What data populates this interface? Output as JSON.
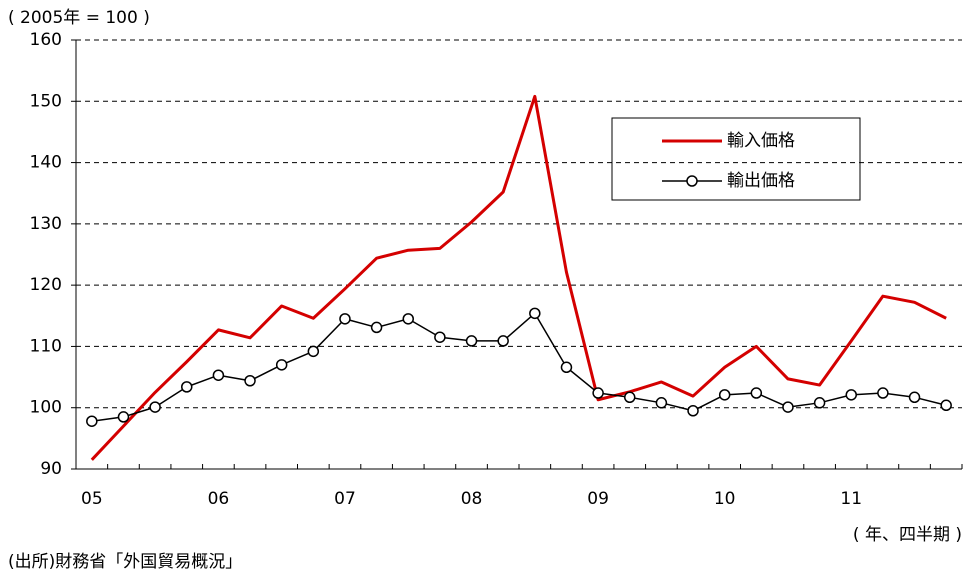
{
  "chart_data": {
    "type": "line",
    "y_label": "( 2005年 = 100 )",
    "x_label": "( 年、四半期 )",
    "source": "(出所)財務省「外国貿易概況」",
    "categories": [
      "05",
      null,
      null,
      null,
      "06",
      null,
      null,
      null,
      "07",
      null,
      null,
      null,
      "08",
      null,
      null,
      null,
      "09",
      null,
      null,
      null,
      "10",
      null,
      null,
      null,
      "11",
      null,
      null,
      null
    ],
    "series": [
      {
        "name": "輸入価格",
        "color": "#d40000",
        "marker": "none",
        "values": [
          91.5,
          97,
          102.5,
          107.5,
          112.7,
          111.4,
          116.6,
          114.6,
          119.4,
          124.4,
          125.7,
          126,
          130.3,
          135.2,
          150.8,
          122.1,
          101.3,
          102.6,
          104.2,
          101.9,
          106.6,
          110,
          104.7,
          103.7,
          110.9,
          118.2,
          117.2,
          114.6
        ]
      },
      {
        "name": "輸出価格",
        "color": "#000000",
        "marker": "circle",
        "values": [
          97.8,
          98.5,
          100.1,
          103.4,
          105.3,
          104.4,
          107,
          109.2,
          114.5,
          113.1,
          114.5,
          111.5,
          110.9,
          110.9,
          115.4,
          106.6,
          102.4,
          101.7,
          100.8,
          99.5,
          102.1,
          102.4,
          100.1,
          100.8,
          102.1,
          102.4,
          101.7,
          100.4
        ]
      }
    ],
    "ylim": [
      90,
      160
    ],
    "yticks": [
      90,
      100,
      110,
      120,
      130,
      140,
      150,
      160
    ],
    "grid": true
  }
}
